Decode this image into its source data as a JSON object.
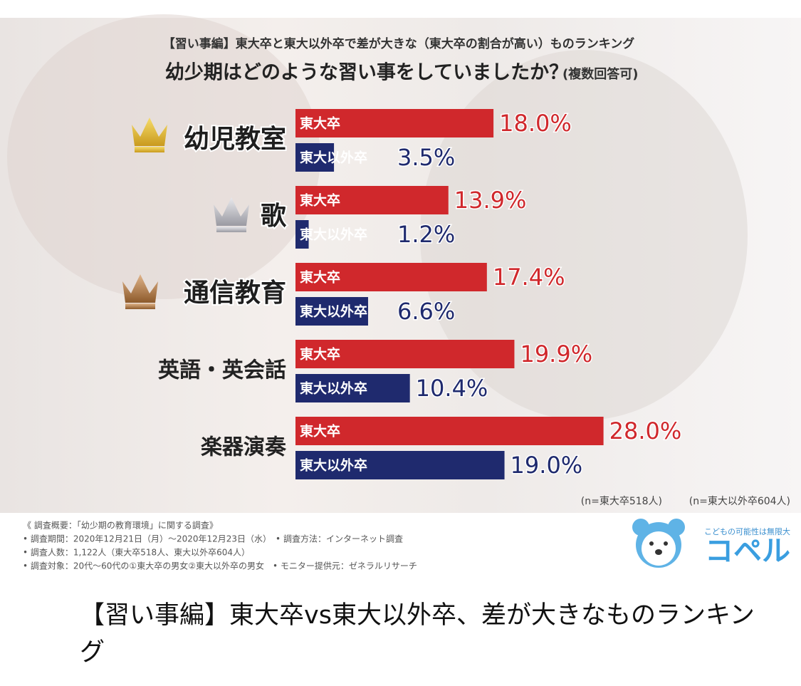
{
  "chart_data": {
    "type": "bar",
    "orientation": "horizontal",
    "header": "【習い事編】東大卒と東大以外卒で差が大きな（東大卒の割合が高い）ものランキング",
    "title": "幼少期はどのような習い事をしていましたか？",
    "subtitle": "(複数回答可)",
    "categories": [
      "幼児教室",
      "歌",
      "通信教育",
      "英語・英会話",
      "楽器演奏"
    ],
    "series": [
      {
        "name": "東大卒",
        "color": "#d0282c",
        "values": [
          18.0,
          13.9,
          17.4,
          19.9,
          28.0
        ],
        "value_labels": [
          "18.0%",
          "13.9%",
          "17.4%",
          "19.9%",
          "28.0%"
        ]
      },
      {
        "name": "東大以外卒",
        "color": "#1f2a6e",
        "values": [
          3.5,
          1.2,
          6.6,
          10.4,
          19.0
        ],
        "value_labels": [
          "3.5%",
          "1.2%",
          "6.6%",
          "10.4%",
          "19.0%"
        ]
      }
    ],
    "notes": [
      "(n=東大卒518人)",
      "(n=東大以外卒604人)"
    ]
  },
  "survey": {
    "lines": [
      "《 調査概要：「幼少期の教育環境」に関する調査》",
      "• 調査期間：2020年12月21日（月）～2020年12月23日（水）　• 調査方法：インターネット調査",
      "• 調査人数：1,122人（東大卒518人、東大以外卒604人）",
      "• 調査対象：20代～60代の①東大卒の男女②東大以外卒の男女　• モニター提供元：ゼネラルリサーチ"
    ]
  },
  "logo": {
    "tagline": "こどもの可能性は無限大",
    "name": "コペル"
  },
  "caption": "【習い事編】東大卒vs東大以外卒、差が大きなものランキング"
}
